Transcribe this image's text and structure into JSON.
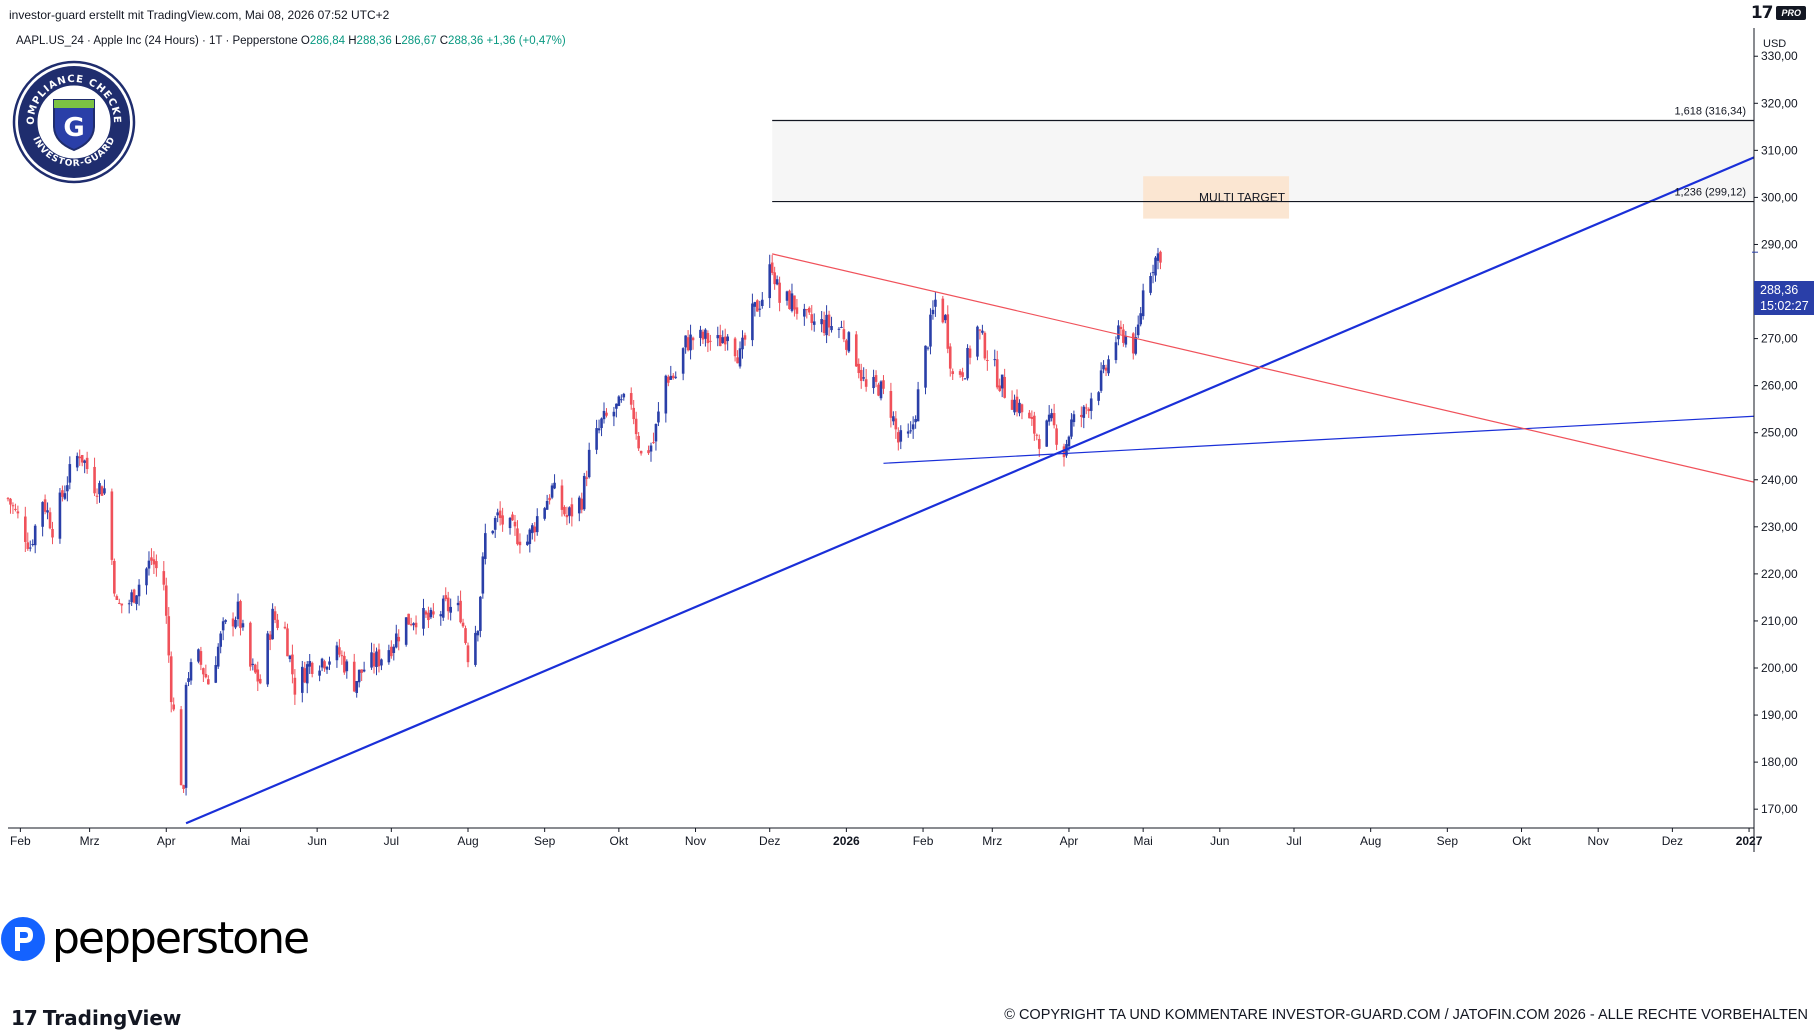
{
  "header": {
    "created_by": "investor-guard erstellt mit TradingView.com, Mai 08, 2026 07:52 UTC+2",
    "logo_mark": "17",
    "logo_badge": "PRO"
  },
  "legend": {
    "symbol": "AAPL.US_24 · Apple Inc (24 Hours) · 1T · Pepperstone",
    "open_label": "O",
    "open": "286,84",
    "high_label": "H",
    "high": "288,36",
    "low_label": "L",
    "low": "286,67",
    "close_label": "C",
    "close": "288,36",
    "change": "+1,36 (+0,47%)"
  },
  "badge": {
    "top_text": "COMPLIANCE CHECKED",
    "bottom_text": "INVESTOR-GUARD",
    "letter": "G"
  },
  "price_axis": {
    "currency": "USD",
    "last_price": "288,36",
    "countdown": "15:02:27"
  },
  "watermark": {
    "brand": "pepperstone"
  },
  "footer": {
    "tv_mark": "17",
    "tv_text": "TradingView",
    "copyright": "© COPYRIGHT TA UND KOMMENTARE INVESTOR-GUARD.COM / JATOFIN.COM 2026 - ALLE RECHTE VORBEHALTEN"
  },
  "colors": {
    "up": "#2a3fa8",
    "down": "#f0515a",
    "trendline_blue": "#1a2fd8",
    "trendline_red": "#f0515a",
    "price_tag": "#2a3fa8",
    "target_zone": "#f6f6f6",
    "multi_target_zone": "#fbe6d2"
  },
  "chart_data": {
    "type": "candlestick",
    "symbol": "AAPL.US_24",
    "timeframe": "1T",
    "ylim": [
      166,
      336
    ],
    "y_ticks": [
      170,
      180,
      190,
      200,
      210,
      220,
      230,
      240,
      250,
      260,
      270,
      280,
      290,
      300,
      310,
      320,
      330
    ],
    "y_tick_labels": [
      "170,00",
      "180,00",
      "190,00",
      "200,00",
      "210,00",
      "220,00",
      "230,00",
      "240,00",
      "250,00",
      "260,00",
      "270,00",
      "280,00",
      "290,00",
      "300,00",
      "310,00",
      "320,00",
      "330,00"
    ],
    "x_range": [
      "2025-01-27",
      "2027-01-03"
    ],
    "x_ticks": [
      {
        "label": "Feb",
        "date": "2025-02-01"
      },
      {
        "label": "Mrz",
        "date": "2025-03-01"
      },
      {
        "label": "Apr",
        "date": "2025-04-01"
      },
      {
        "label": "Mai",
        "date": "2025-05-01"
      },
      {
        "label": "Jun",
        "date": "2025-06-01"
      },
      {
        "label": "Jul",
        "date": "2025-07-01"
      },
      {
        "label": "Aug",
        "date": "2025-08-01"
      },
      {
        "label": "Sep",
        "date": "2025-09-01"
      },
      {
        "label": "Okt",
        "date": "2025-10-01"
      },
      {
        "label": "Nov",
        "date": "2025-11-01"
      },
      {
        "label": "Dez",
        "date": "2025-12-01"
      },
      {
        "label": "2026",
        "date": "2026-01-01",
        "bold": true
      },
      {
        "label": "Feb",
        "date": "2026-02-01"
      },
      {
        "label": "Mrz",
        "date": "2026-03-01"
      },
      {
        "label": "Apr",
        "date": "2026-04-01"
      },
      {
        "label": "Mai",
        "date": "2026-05-01"
      },
      {
        "label": "Jun",
        "date": "2026-06-01"
      },
      {
        "label": "Jul",
        "date": "2026-07-01"
      },
      {
        "label": "Aug",
        "date": "2026-08-01"
      },
      {
        "label": "Sep",
        "date": "2026-09-01"
      },
      {
        "label": "Okt",
        "date": "2026-10-01"
      },
      {
        "label": "Nov",
        "date": "2026-11-01"
      },
      {
        "label": "Dez",
        "date": "2026-12-01"
      },
      {
        "label": "2027",
        "date": "2027-01-01",
        "bold": true
      }
    ],
    "last_close": 288.36,
    "price_path": [
      {
        "date": "2025-01-27",
        "close": 236
      },
      {
        "date": "2025-01-31",
        "close": 232
      },
      {
        "date": "2025-02-05",
        "close": 226
      },
      {
        "date": "2025-02-10",
        "close": 236
      },
      {
        "date": "2025-02-14",
        "close": 230
      },
      {
        "date": "2025-02-20",
        "close": 240
      },
      {
        "date": "2025-02-25",
        "close": 246
      },
      {
        "date": "2025-03-03",
        "close": 239
      },
      {
        "date": "2025-03-07",
        "close": 238
      },
      {
        "date": "2025-03-12",
        "close": 213
      },
      {
        "date": "2025-03-17",
        "close": 214
      },
      {
        "date": "2025-03-21",
        "close": 218
      },
      {
        "date": "2025-03-26",
        "close": 223
      },
      {
        "date": "2025-03-31",
        "close": 218
      },
      {
        "date": "2025-04-03",
        "close": 195
      },
      {
        "date": "2025-04-08",
        "close": 172
      },
      {
        "date": "2025-04-09",
        "close": 198
      },
      {
        "date": "2025-04-14",
        "close": 202
      },
      {
        "date": "2025-04-18",
        "close": 197
      },
      {
        "date": "2025-04-24",
        "close": 208
      },
      {
        "date": "2025-04-30",
        "close": 212
      },
      {
        "date": "2025-05-05",
        "close": 200
      },
      {
        "date": "2025-05-09",
        "close": 197
      },
      {
        "date": "2025-05-14",
        "close": 211
      },
      {
        "date": "2025-05-19",
        "close": 208
      },
      {
        "date": "2025-05-23",
        "close": 196
      },
      {
        "date": "2025-05-29",
        "close": 201
      },
      {
        "date": "2025-06-04",
        "close": 202
      },
      {
        "date": "2025-06-10",
        "close": 203
      },
      {
        "date": "2025-06-16",
        "close": 197
      },
      {
        "date": "2025-06-20",
        "close": 200
      },
      {
        "date": "2025-06-26",
        "close": 202
      },
      {
        "date": "2025-07-01",
        "close": 205
      },
      {
        "date": "2025-07-07",
        "close": 210
      },
      {
        "date": "2025-07-11",
        "close": 211
      },
      {
        "date": "2025-07-17",
        "close": 210
      },
      {
        "date": "2025-07-23",
        "close": 213
      },
      {
        "date": "2025-07-29",
        "close": 212
      },
      {
        "date": "2025-08-01",
        "close": 203
      },
      {
        "date": "2025-08-05",
        "close": 210
      },
      {
        "date": "2025-08-08",
        "close": 228
      },
      {
        "date": "2025-08-13",
        "close": 232
      },
      {
        "date": "2025-08-19",
        "close": 229
      },
      {
        "date": "2025-08-25",
        "close": 227
      },
      {
        "date": "2025-08-29",
        "close": 232
      },
      {
        "date": "2025-09-04",
        "close": 238
      },
      {
        "date": "2025-09-10",
        "close": 232
      },
      {
        "date": "2025-09-16",
        "close": 236
      },
      {
        "date": "2025-09-19",
        "close": 245
      },
      {
        "date": "2025-09-24",
        "close": 252
      },
      {
        "date": "2025-09-30",
        "close": 255
      },
      {
        "date": "2025-10-06",
        "close": 257
      },
      {
        "date": "2025-10-10",
        "close": 245
      },
      {
        "date": "2025-10-15",
        "close": 248
      },
      {
        "date": "2025-10-20",
        "close": 262
      },
      {
        "date": "2025-10-24",
        "close": 262
      },
      {
        "date": "2025-10-28",
        "close": 269
      },
      {
        "date": "2025-10-31",
        "close": 270
      },
      {
        "date": "2025-11-05",
        "close": 270
      },
      {
        "date": "2025-11-10",
        "close": 269
      },
      {
        "date": "2025-11-14",
        "close": 272
      },
      {
        "date": "2025-11-19",
        "close": 266
      },
      {
        "date": "2025-11-24",
        "close": 275
      },
      {
        "date": "2025-11-28",
        "close": 279
      },
      {
        "date": "2025-12-02",
        "close": 286
      },
      {
        "date": "2025-12-05",
        "close": 278
      },
      {
        "date": "2025-12-10",
        "close": 278
      },
      {
        "date": "2025-12-15",
        "close": 274
      },
      {
        "date": "2025-12-19",
        "close": 273
      },
      {
        "date": "2025-12-24",
        "close": 273
      },
      {
        "date": "2025-12-30",
        "close": 272
      },
      {
        "date": "2026-01-05",
        "close": 266
      },
      {
        "date": "2026-01-09",
        "close": 259
      },
      {
        "date": "2026-01-14",
        "close": 260
      },
      {
        "date": "2026-01-19",
        "close": 255
      },
      {
        "date": "2026-01-22",
        "close": 248
      },
      {
        "date": "2026-01-27",
        "close": 249
      },
      {
        "date": "2026-01-30",
        "close": 258
      },
      {
        "date": "2026-02-03",
        "close": 270
      },
      {
        "date": "2026-02-06",
        "close": 278
      },
      {
        "date": "2026-02-10",
        "close": 274
      },
      {
        "date": "2026-02-13",
        "close": 262
      },
      {
        "date": "2026-02-18",
        "close": 264
      },
      {
        "date": "2026-02-23",
        "close": 272
      },
      {
        "date": "2026-02-26",
        "close": 268
      },
      {
        "date": "2026-03-03",
        "close": 262
      },
      {
        "date": "2026-03-06",
        "close": 259
      },
      {
        "date": "2026-03-11",
        "close": 256
      },
      {
        "date": "2026-03-16",
        "close": 252
      },
      {
        "date": "2026-03-20",
        "close": 249
      },
      {
        "date": "2026-03-25",
        "close": 252
      },
      {
        "date": "2026-03-30",
        "close": 246
      },
      {
        "date": "2026-04-02",
        "close": 252
      },
      {
        "date": "2026-04-07",
        "close": 254
      },
      {
        "date": "2026-04-10",
        "close": 258
      },
      {
        "date": "2026-04-15",
        "close": 262
      },
      {
        "date": "2026-04-20",
        "close": 270
      },
      {
        "date": "2026-04-23",
        "close": 271
      },
      {
        "date": "2026-04-28",
        "close": 268
      },
      {
        "date": "2026-05-01",
        "close": 280
      },
      {
        "date": "2026-05-04",
        "close": 285
      },
      {
        "date": "2026-05-06",
        "close": 287
      },
      {
        "date": "2026-05-08",
        "close": 288.36
      }
    ],
    "annotations": {
      "fib_lines": [
        {
          "label": "1,618 (316,34)",
          "value": 316.34
        },
        {
          "label": "1,236 (299,12)",
          "value": 299.12
        }
      ],
      "target_zone": {
        "low": 299.12,
        "high": 316.34,
        "from": "2025-12-02",
        "to": "2027-01-03"
      },
      "multi_target": {
        "label": "MULTI TARGET",
        "low": 295.5,
        "high": 304.5,
        "from": "2026-05-01",
        "to": "2026-06-29"
      },
      "trendlines": [
        {
          "name": "rising-support",
          "color": "blue",
          "start": {
            "date": "2025-04-09",
            "value": 167
          },
          "end": {
            "date": "2027-01-03",
            "value": 308.5
          }
        },
        {
          "name": "triangle-lower",
          "color": "blue",
          "start": {
            "date": "2026-01-16",
            "value": 243.5
          },
          "end": {
            "date": "2027-01-03",
            "value": 253.5
          }
        },
        {
          "name": "triangle-upper",
          "color": "red",
          "start": {
            "date": "2025-12-02",
            "value": 288
          },
          "end": {
            "date": "2027-01-03",
            "value": 239.5
          }
        }
      ]
    }
  }
}
